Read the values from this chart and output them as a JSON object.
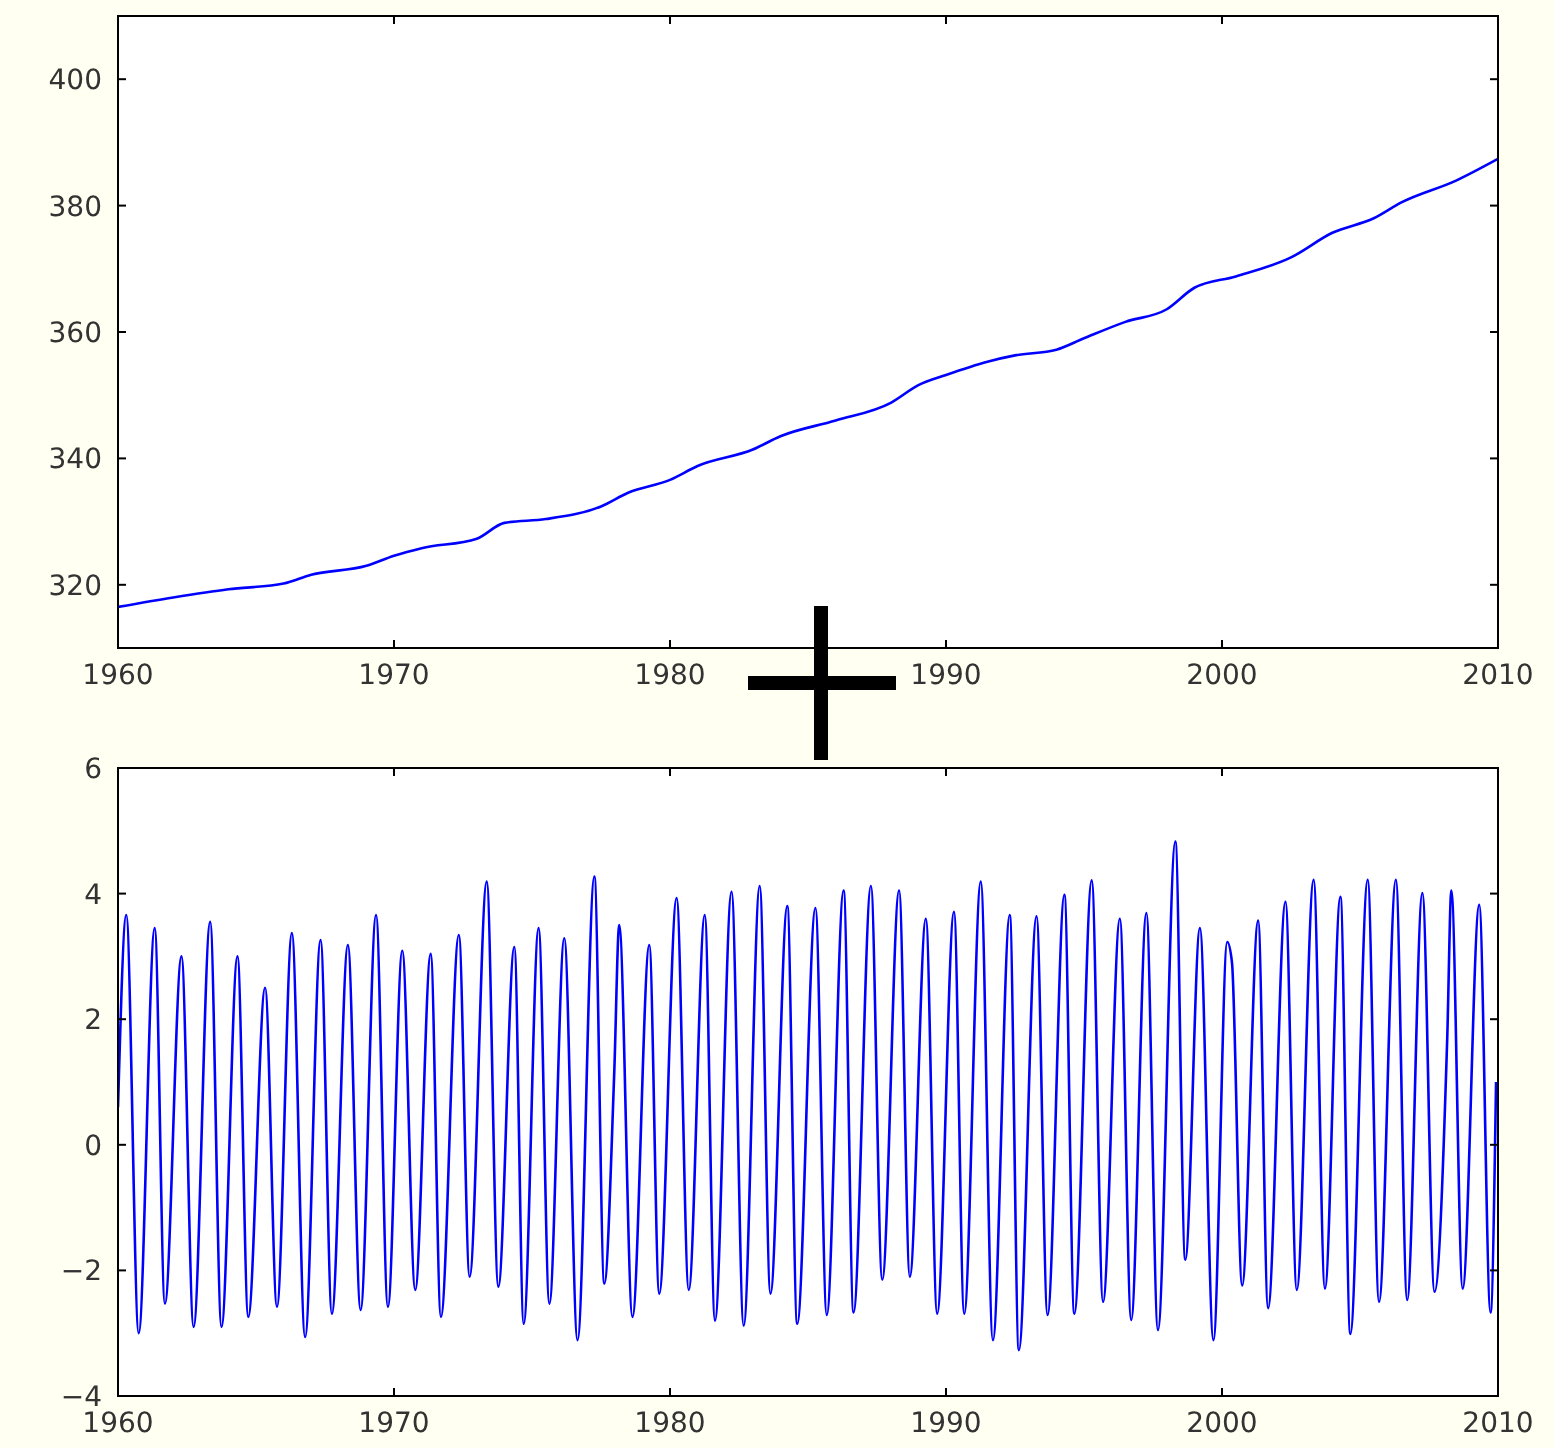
{
  "chart_data": [
    {
      "type": "line",
      "xlim": [
        1960,
        2010
      ],
      "ylim": [
        310,
        410
      ],
      "xticks": [
        1960,
        1970,
        1980,
        1990,
        2000,
        2010
      ],
      "yticks": [
        320,
        340,
        360,
        380,
        400
      ],
      "grid": false,
      "series": [
        {
          "color": "#0000ff",
          "x": [
            1960,
            1962,
            1964,
            1966,
            1967,
            1969,
            1970,
            1971,
            1973,
            1974,
            1975.5,
            1977.5,
            1978.5,
            1980,
            1981,
            1983,
            1984,
            1986,
            1988,
            1989,
            1990,
            1991.5,
            1992.5,
            1994,
            1995,
            1996.5,
            1998,
            1999,
            2000.5,
            2002.5,
            2004,
            2005.5,
            2006.5,
            2008.5,
            2010
          ],
          "values": [
            316.5,
            318,
            319.3,
            320.2,
            321.6,
            323,
            324.6,
            325.8,
            327.3,
            329.8,
            330.4,
            332.4,
            334.6,
            336.6,
            338.8,
            341.4,
            343.5,
            346,
            348.8,
            351.6,
            353.2,
            355.3,
            356.3,
            357.2,
            359,
            361.6,
            363.6,
            367,
            368.8,
            371.8,
            375.7,
            378,
            380.5,
            384,
            387.4
          ]
        }
      ]
    },
    {
      "type": "line",
      "xlim": [
        1960,
        2010
      ],
      "ylim": [
        -4,
        6
      ],
      "xticks": [
        1960,
        1970,
        1980,
        1990,
        2000,
        2010
      ],
      "yticks": [
        {
          "value": -4,
          "label": "−4"
        },
        {
          "value": -2,
          "label": "−2"
        },
        0,
        2,
        4,
        6
      ],
      "grid": false,
      "series": [
        {
          "color": "#0000ff",
          "x": [
            1960,
            1960.3,
            1960.75,
            1961.33,
            1961.7,
            1962.3,
            1962.74,
            1963.34,
            1963.75,
            1964.33,
            1964.72,
            1965.33,
            1965.76,
            1966.3,
            1966.78,
            1967.34,
            1967.75,
            1968.33,
            1968.79,
            1969.35,
            1969.78,
            1970.3,
            1970.77,
            1971.33,
            1971.7,
            1972.35,
            1972.74,
            1973.36,
            1973.78,
            1974.36,
            1974.7,
            1975.24,
            1975.63,
            1976.17,
            1976.65,
            1977.26,
            1977.62,
            1977.98,
            1978.16,
            1978.64,
            1979.25,
            1979.61,
            1980.24,
            1980.68,
            1981.26,
            1981.63,
            1982.23,
            1982.67,
            1983.25,
            1983.64,
            1984.25,
            1984.61,
            1985.27,
            1985.68,
            1986.29,
            1986.65,
            1987.28,
            1987.69,
            1988.3,
            1988.69,
            1989.27,
            1989.68,
            1990.29,
            1990.66,
            1991.26,
            1991.7,
            1992.31,
            1992.64,
            1993.28,
            1993.68,
            1994.29,
            1994.65,
            1995.28,
            1995.69,
            1996.3,
            1996.71,
            1997.26,
            1997.68,
            1998.31,
            1998.67,
            1999.2,
            1999.69,
            2000.19,
            2000.36,
            2000.73,
            2001.31,
            2001.67,
            2002.3,
            2002.71,
            2003.32,
            2003.73,
            2004.29,
            2004.65,
            2005.28,
            2005.69,
            2006.3,
            2006.71,
            2007.26,
            2007.7,
            2008.16,
            2008.31,
            2008.72,
            2009.32,
            2009.73,
            2009.93
          ],
          "values": [
            0.6,
            3.66,
            -3.0,
            3.45,
            -2.53,
            3.0,
            -2.9,
            3.55,
            -2.9,
            3.0,
            -2.74,
            2.5,
            -2.58,
            3.37,
            -3.06,
            3.26,
            -2.69,
            3.18,
            -2.63,
            3.66,
            -2.58,
            3.09,
            -2.31,
            3.04,
            -2.74,
            3.34,
            -2.1,
            4.19,
            -2.26,
            3.15,
            -2.85,
            3.45,
            -2.53,
            3.29,
            -3.11,
            4.27,
            -2.21,
            1.15,
            3.5,
            -2.74,
            3.18,
            -2.37,
            3.93,
            -2.31,
            3.66,
            -2.8,
            4.03,
            -2.88,
            4.12,
            -2.37,
            3.8,
            -2.85,
            3.77,
            -2.71,
            4.05,
            -2.67,
            4.12,
            -2.15,
            4.05,
            -2.1,
            3.6,
            -2.69,
            3.71,
            -2.69,
            4.19,
            -3.11,
            3.66,
            -3.27,
            3.64,
            -2.71,
            3.98,
            -2.69,
            4.21,
            -2.5,
            3.6,
            -2.79,
            3.69,
            -2.95,
            4.83,
            -1.83,
            3.45,
            -3.11,
            3.23,
            2.91,
            -2.24,
            3.57,
            -2.6,
            3.87,
            -2.31,
            4.22,
            -2.29,
            3.95,
            -3.01,
            4.22,
            -2.5,
            4.22,
            -2.47,
            4.01,
            -2.34,
            1.69,
            4.05,
            -2.29,
            3.82,
            -2.67,
            1.0
          ]
        }
      ]
    }
  ]
}
